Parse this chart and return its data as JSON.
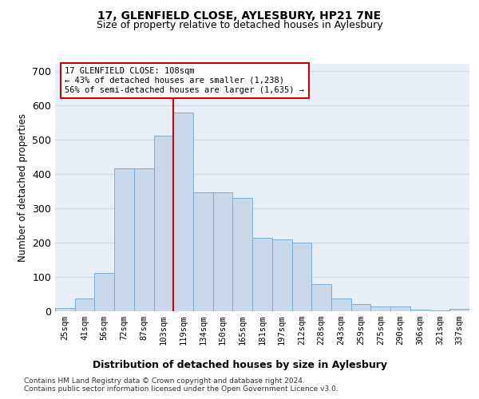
{
  "title1": "17, GLENFIELD CLOSE, AYLESBURY, HP21 7NE",
  "title2": "Size of property relative to detached houses in Aylesbury",
  "xlabel": "Distribution of detached houses by size in Aylesbury",
  "ylabel": "Number of detached properties",
  "categories": [
    "25sqm",
    "41sqm",
    "56sqm",
    "72sqm",
    "87sqm",
    "103sqm",
    "119sqm",
    "134sqm",
    "150sqm",
    "165sqm",
    "181sqm",
    "197sqm",
    "212sqm",
    "228sqm",
    "243sqm",
    "259sqm",
    "275sqm",
    "290sqm",
    "306sqm",
    "321sqm",
    "337sqm"
  ],
  "values": [
    10,
    38,
    112,
    415,
    415,
    510,
    578,
    345,
    345,
    330,
    213,
    210,
    200,
    80,
    38,
    20,
    15,
    15,
    5,
    2,
    8
  ],
  "bar_color": "#c8d8e8",
  "bar_edge_color": "#7bafd4",
  "vline_color": "#cc0000",
  "annotation_text": "17 GLENFIELD CLOSE: 108sqm\n← 43% of detached houses are smaller (1,238)\n56% of semi-detached houses are larger (1,635) →",
  "annotation_box_edge": "#cc0000",
  "annotation_box_face": "#ffffff",
  "grid_color": "#d0d8e8",
  "background_color": "#e8eef5",
  "footer_text": "Contains HM Land Registry data © Crown copyright and database right 2024.\nContains public sector information licensed under the Open Government Licence v3.0.",
  "ylim": [
    0,
    720
  ],
  "yticks": [
    0,
    100,
    200,
    300,
    400,
    500,
    600,
    700
  ]
}
